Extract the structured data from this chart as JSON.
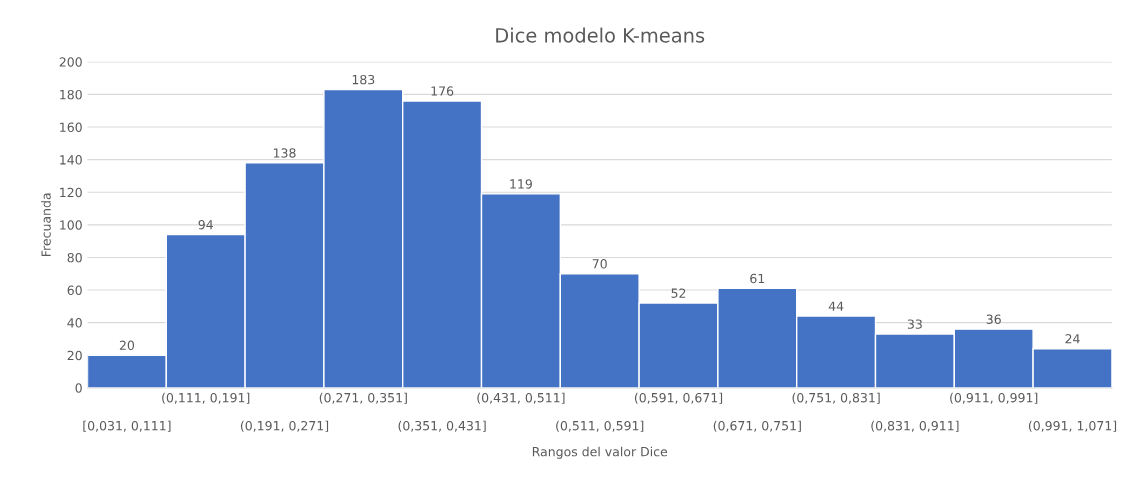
{
  "chart_data": {
    "type": "bar",
    "title": "Dice modelo K-means",
    "xlabel": "Rangos del valor Dice",
    "ylabel": "Frecuanda",
    "categories": [
      "[0,031, 0,111]",
      "(0,111, 0,191]",
      "(0,191, 0,271]",
      "(0,271, 0,351]",
      "(0,351, 0,431]",
      "(0,431, 0,511]",
      "(0,511, 0,591]",
      "(0,591, 0,671]",
      "(0,671, 0,751]",
      "(0,751, 0,831]",
      "(0,831, 0,911]",
      "(0,911, 0,991]",
      "(0,991, 1,071]"
    ],
    "values": [
      20,
      94,
      138,
      183,
      176,
      119,
      70,
      52,
      61,
      44,
      33,
      36,
      24
    ],
    "color": "#4472c4",
    "ylim": [
      0,
      200
    ],
    "yticks": [
      0,
      20,
      40,
      60,
      80,
      100,
      120,
      140,
      160,
      180,
      200
    ],
    "grid": "y",
    "data_labels": true
  }
}
